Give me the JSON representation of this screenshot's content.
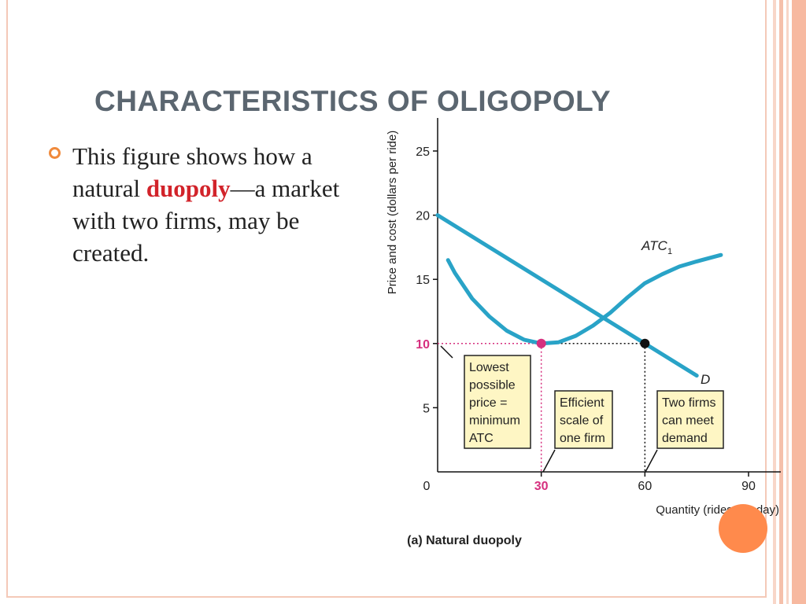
{
  "slide": {
    "title": "CHARACTERISTICS OF OLIGOPOLY",
    "bullet": {
      "text_before": "This figure shows how a natural ",
      "highlight": "duopoly",
      "text_after": "—a market with two firms, may be created."
    }
  },
  "theme": {
    "accent": "#f08a3c",
    "orange_dot": "#ff8a4c",
    "border": "#f4c9b8",
    "curve": "#29a3c7",
    "magenta": "#d6307f",
    "box_fill": "#fef6c4",
    "title_color": "#5b6670"
  },
  "chart_data": {
    "type": "line",
    "caption": "(a) Natural duopoly",
    "xlabel": "Quantity (rides per day)",
    "ylabel": "Price and cost (dollars per ride)",
    "xlim": [
      0,
      90
    ],
    "ylim": [
      0,
      25
    ],
    "xticks": [
      0,
      30,
      60,
      90
    ],
    "yticks": [
      5,
      10,
      15,
      20,
      25
    ],
    "series": [
      {
        "name": "ATC",
        "subscript": "1",
        "x": [
          3,
          5,
          10,
          15,
          20,
          25,
          30,
          35,
          40,
          45,
          50,
          55,
          60,
          65,
          70,
          75,
          82
        ],
        "y": [
          16.5,
          15.5,
          13.5,
          12.1,
          11.0,
          10.3,
          10.0,
          10.1,
          10.6,
          11.4,
          12.4,
          13.6,
          14.7,
          15.4,
          16.0,
          16.4,
          16.9
        ]
      },
      {
        "name": "D",
        "x": [
          0,
          75
        ],
        "y": [
          20,
          7.5
        ]
      }
    ],
    "points": [
      {
        "name": "efficient-scale-point",
        "x": 30,
        "y": 10,
        "color": "#d6307f"
      },
      {
        "name": "demand-at-60-point",
        "x": 60,
        "y": 10,
        "color": "#111111"
      }
    ],
    "annotations": [
      {
        "name": "lowest-price-box",
        "lines": [
          "Lowest",
          "possible",
          "price =",
          "minimum",
          "ATC"
        ]
      },
      {
        "name": "efficient-scale-box",
        "lines": [
          "Efficient",
          "scale of",
          "one firm"
        ]
      },
      {
        "name": "two-firms-box",
        "lines": [
          "Two firms",
          "can meet",
          "demand"
        ]
      }
    ],
    "highlighted_values": {
      "price": 10,
      "quantity": 30
    }
  }
}
